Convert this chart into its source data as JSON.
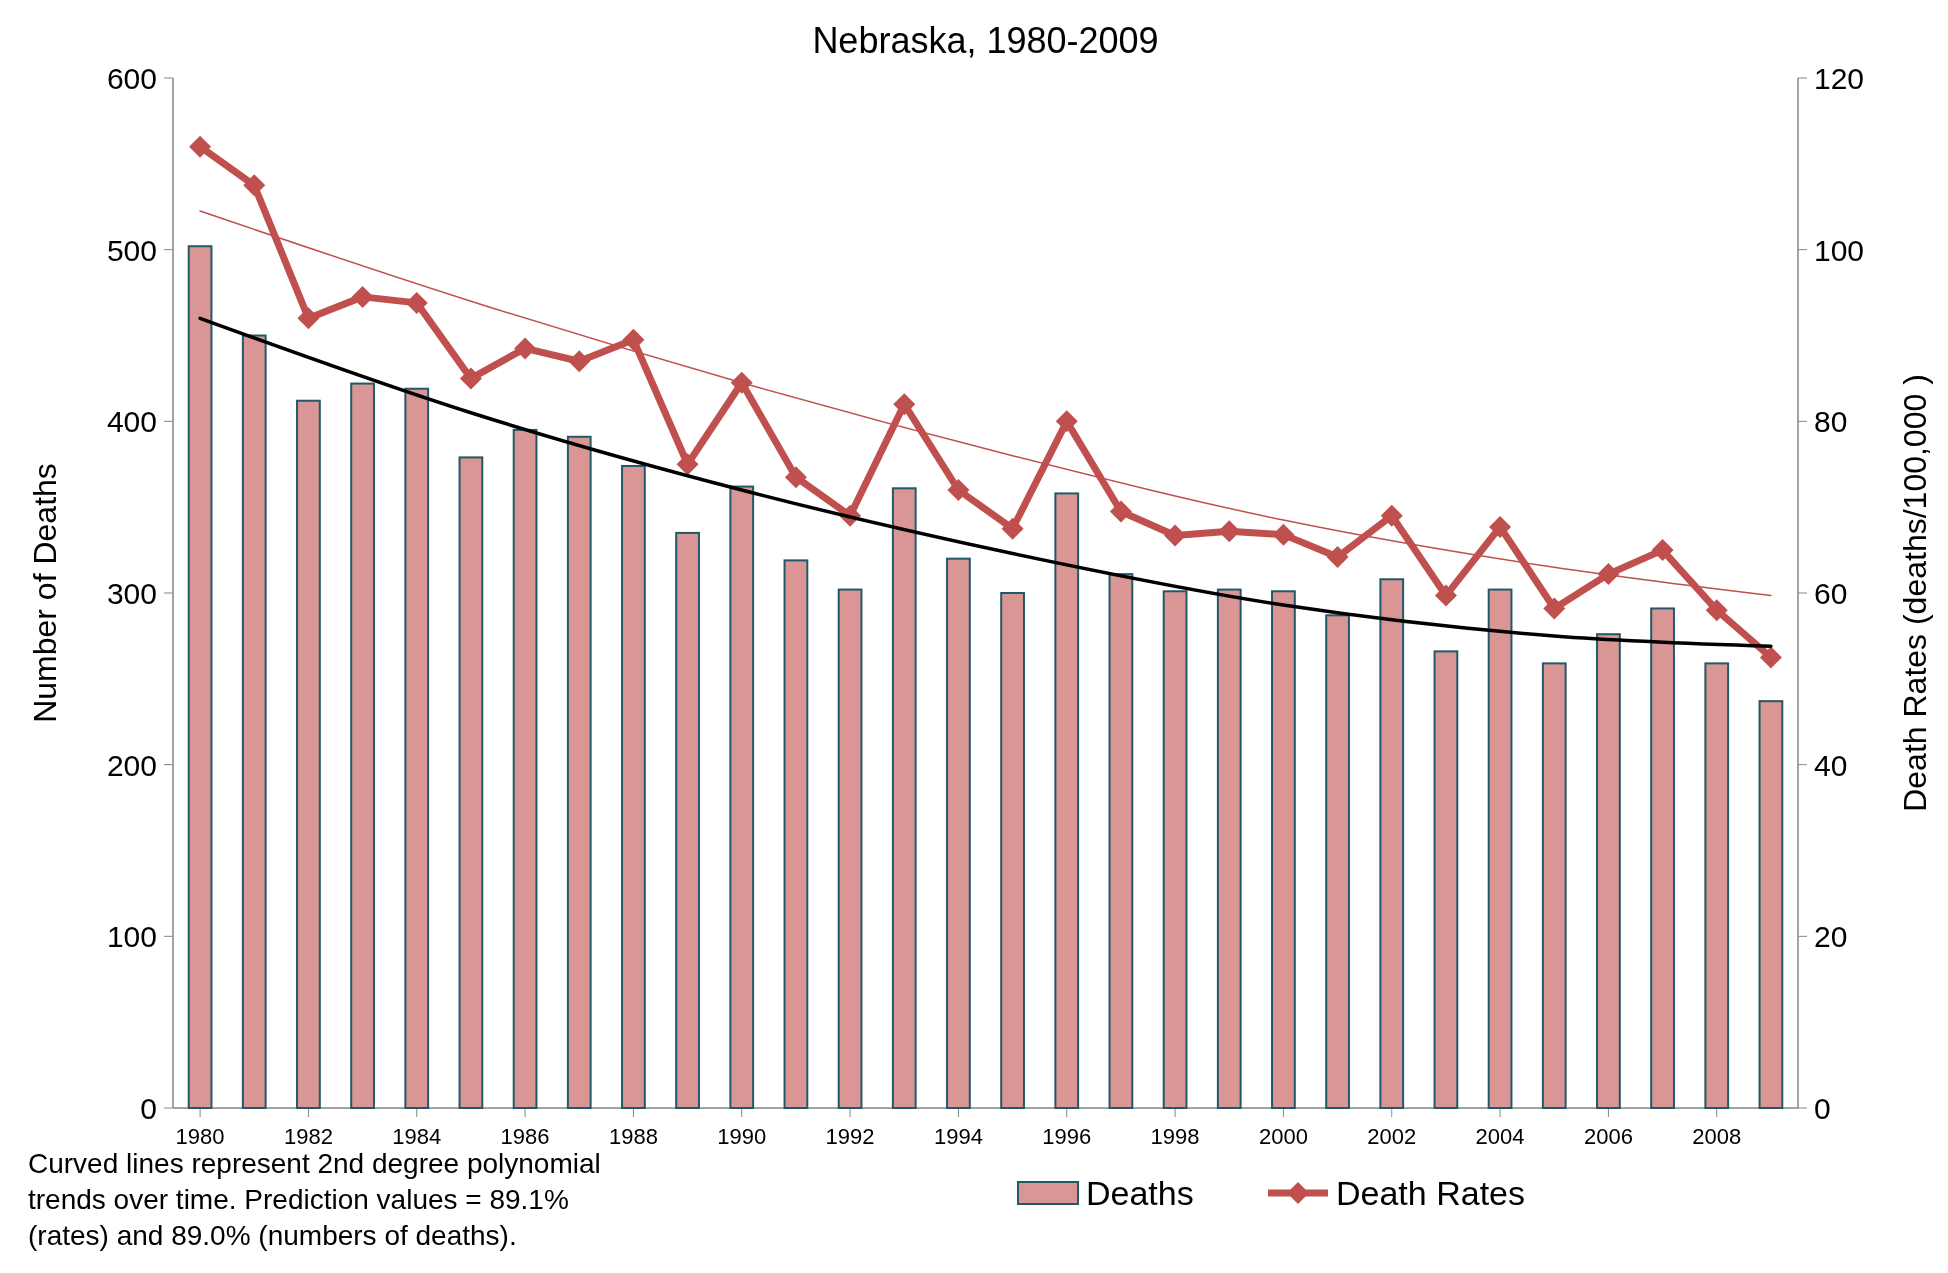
{
  "chart_data": {
    "type": "bar",
    "title": "Nebraska, 1980-2009",
    "ylabel": "Number of Deaths",
    "y2label": "Death Rates (deaths/100,000 )",
    "x": [
      1980,
      1981,
      1982,
      1983,
      1984,
      1985,
      1986,
      1987,
      1988,
      1989,
      1990,
      1991,
      1992,
      1993,
      1994,
      1995,
      1996,
      1997,
      1998,
      1999,
      2000,
      2001,
      2002,
      2003,
      2004,
      2005,
      2006,
      2007,
      2008,
      2009
    ],
    "xlim": [
      1979.5,
      2009.5
    ],
    "xticks": [
      1980,
      1982,
      1984,
      1986,
      1988,
      1990,
      1992,
      1994,
      1996,
      1998,
      2000,
      2002,
      2004,
      2006,
      2008
    ],
    "ylim": [
      0,
      600
    ],
    "yticks": [
      0,
      100,
      200,
      300,
      400,
      500,
      600
    ],
    "y2lim": [
      0,
      120
    ],
    "y2ticks": [
      0,
      20,
      40,
      60,
      80,
      100,
      120
    ],
    "series": [
      {
        "name": "Deaths",
        "color": "#d99694",
        "values": [
          502,
          450,
          412,
          422,
          419,
          379,
          395,
          391,
          374,
          335,
          362,
          319,
          302,
          361,
          320,
          300,
          358,
          311,
          301,
          302,
          301,
          287,
          308,
          266,
          302,
          259,
          276,
          291,
          259,
          237
        ]
      },
      {
        "name": "Death Rates",
        "type": "line",
        "axis": "y2",
        "color": "#c0504d",
        "marker": "diamond",
        "values": [
          112,
          107.5,
          92,
          94.5,
          93.8,
          85,
          88.5,
          87,
          89.5,
          75,
          84.5,
          73.5,
          69,
          82,
          72,
          67.5,
          80,
          69.5,
          66.7,
          67.2,
          66.8,
          64.2,
          69,
          59.7,
          67.7,
          58.2,
          62.2,
          65,
          58,
          52.5
        ]
      },
      {
        "type": "line",
        "color": "#000000",
        "marker": "none",
        "x": [
          1980,
          1985,
          1990,
          1995,
          2000,
          2005,
          2009
        ],
        "values": [
          460,
          405,
          360,
          323,
          293,
          275,
          269
        ]
      },
      {
        "type": "line",
        "axis": "y2",
        "color": "#c0504d",
        "marker": "none",
        "x": [
          1980,
          1985,
          1990,
          1995,
          2000,
          2005,
          2009
        ],
        "values": [
          104.5,
          94,
          84.5,
          76,
          68.5,
          63,
          59.7
        ]
      }
    ],
    "legend": "bottom",
    "grid": false,
    "annotations": [
      "Curved lines represent 2nd degree polynomial trends over time.  Prediction values = 89.1% (rates) and 89.0% (numbers of deaths)."
    ]
  }
}
